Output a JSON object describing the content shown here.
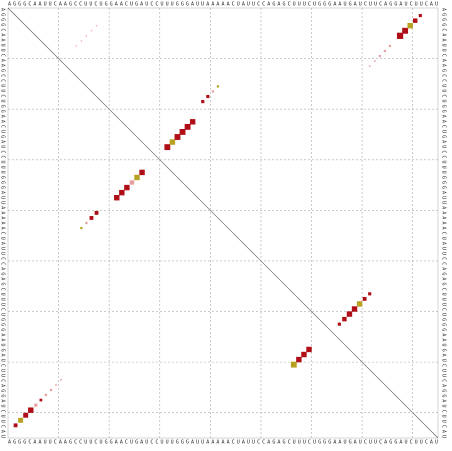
{
  "chart_data": {
    "type": "dotplot",
    "sequence": "AGGGCAAUUCAAGCCUUCUGGAACUGAUCCUUUGGGAUUAAAAACUAUUCCAGAGCUUUCUGGGAAUGAUCUUCAGGAUCUUCAU",
    "grid": [
      10,
      20,
      30,
      40,
      50,
      60,
      70,
      80
    ],
    "rows": [
      6,
      5,
      4,
      3,
      2,
      8,
      9,
      10,
      11,
      12,
      28,
      27,
      26,
      25,
      24,
      23,
      19,
      18,
      17,
      16,
      8,
      7,
      6,
      5,
      4,
      33,
      34,
      35,
      36,
      37,
      38,
      41,
      42,
      43,
      44,
      83,
      82,
      81,
      80,
      79,
      78,
      77,
      76,
      75,
      74,
      71,
      70,
      69,
      68,
      63,
      62,
      61,
      60,
      59,
      58,
      57
    ],
    "cols": [
      78,
      79,
      80,
      81,
      82,
      76,
      75,
      74,
      73,
      72,
      32,
      33,
      34,
      35,
      36,
      37,
      39,
      40,
      41,
      42,
      14,
      15,
      16,
      17,
      18,
      27,
      26,
      25,
      24,
      23,
      22,
      18,
      17,
      16,
      15,
      2,
      3,
      4,
      5,
      6,
      7,
      8,
      9,
      10,
      11,
      57,
      58,
      59,
      60,
      66,
      67,
      68,
      69,
      70,
      71,
      72
    ],
    "probabilities": [
      0.8,
      0.7,
      0.6,
      0.4,
      0.2,
      0.1,
      0.1,
      0.1,
      0.05,
      0.05,
      0.7,
      0.6,
      0.7,
      0.7,
      0.7,
      0.6,
      0.2,
      0.2,
      0.1,
      0.1,
      0.03,
      0.03,
      0.03,
      0.03,
      0.03,
      0.6,
      0.6,
      0.4,
      0.6,
      0.6,
      0.6,
      0.3,
      0.3,
      0.1,
      0.1,
      0.3,
      0.5,
      0.5,
      0.6,
      0.2,
      0.15,
      0.1,
      0.1,
      0.05,
      0.05,
      0.7,
      0.6,
      0.6,
      0.6,
      0.2,
      0.4,
      0.6,
      0.6,
      0.6,
      0.3,
      0.2
    ],
    "colors": [
      "#b00e16",
      "#b00e16",
      "#b8a020",
      "#b00e16",
      "#b00e16",
      "#e6a0a0",
      "#e6a0a0",
      "#e6a0a0",
      "#e6a0a0",
      "#e6a0a0",
      "#b00e16",
      "#b8a020",
      "#b00e16",
      "#b00e16",
      "#b00e16",
      "#b00e16",
      "#b00e16",
      "#b00e16",
      "#e6a0a0",
      "#b8a020",
      "#e6a0a0",
      "#e6a0a0",
      "#e6a0a0",
      "#e6a0a0",
      "#e6a0a0",
      "#b00e16",
      "#b8a020",
      "#e6a0a0",
      "#b00e16",
      "#b00e16",
      "#b00e16",
      "#b00e16",
      "#b00e16",
      "#e6a0a0",
      "#b8a020",
      "#b00e16",
      "#b8a020",
      "#b00e16",
      "#b00e16",
      "#e6a0a0",
      "#b00e16",
      "#e6a0a0",
      "#e6a0a0",
      "#e6a0a0",
      "#e6a0a0",
      "#b8a020",
      "#b00e16",
      "#b00e16",
      "#b00e16",
      "#b00e16",
      "#b00e16",
      "#b00e16",
      "#b00e16",
      "#b8a020",
      "#b00e16",
      "#b00e16"
    ]
  }
}
